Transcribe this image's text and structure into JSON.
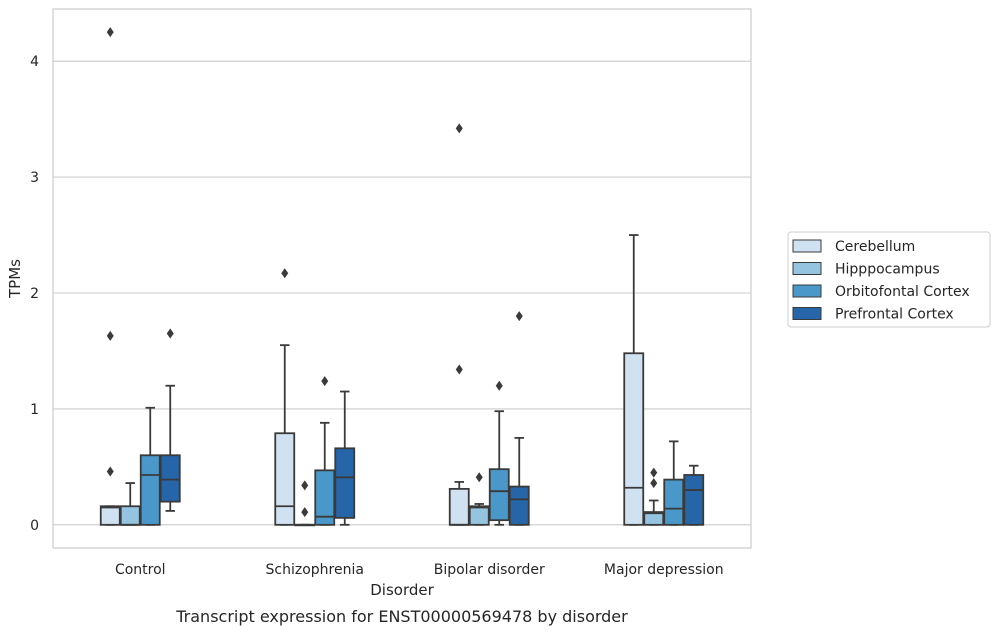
{
  "chart_data": {
    "type": "box",
    "title": "Transcript expression for ENST00000569478 by disorder",
    "xlabel": "Disorder",
    "ylabel": "TPMs",
    "ylim": [
      -0.2,
      4.45
    ],
    "yticks": [
      0,
      1,
      2,
      3,
      4
    ],
    "grid": "horizontal",
    "legend_placement": "right",
    "categories": [
      "Control",
      "Schizophrenia",
      "Bipolar disorder",
      "Major depression"
    ],
    "series": [
      {
        "name": "Cerebellum",
        "color": "#d0e1f2",
        "boxes": [
          {
            "low": 0,
            "q1": 0,
            "median": 0.15,
            "q3": 0.16,
            "high": 0.16,
            "outliers": [
              0.46,
              1.63,
              4.25
            ]
          },
          {
            "low": 0,
            "q1": 0,
            "median": 0.16,
            "q3": 0.79,
            "high": 1.55,
            "outliers": [
              2.17
            ]
          },
          {
            "low": 0,
            "q1": 0,
            "median": 0,
            "q3": 0.31,
            "high": 0.37,
            "outliers": [
              1.34,
              3.42
            ]
          },
          {
            "low": 0,
            "q1": 0,
            "median": 0.32,
            "q3": 1.48,
            "high": 2.5,
            "outliers": []
          }
        ]
      },
      {
        "name": "Hipppocampus",
        "color": "#94c4df",
        "boxes": [
          {
            "low": 0,
            "q1": 0,
            "median": 0,
            "q3": 0.16,
            "high": 0.36,
            "outliers": []
          },
          {
            "low": 0,
            "q1": 0,
            "median": 0,
            "q3": 0,
            "high": 0,
            "outliers": [
              0.11,
              0.34
            ]
          },
          {
            "low": 0,
            "q1": 0,
            "median": 0.15,
            "q3": 0.16,
            "high": 0.18,
            "outliers": [
              0.41
            ]
          },
          {
            "low": 0,
            "q1": 0,
            "median": 0.1,
            "q3": 0.11,
            "high": 0.21,
            "outliers": [
              0.36,
              0.45
            ]
          }
        ]
      },
      {
        "name": "Orbitofontal Cortex",
        "color": "#4a98c9",
        "boxes": [
          {
            "low": 0,
            "q1": 0,
            "median": 0.43,
            "q3": 0.6,
            "high": 1.01,
            "outliers": []
          },
          {
            "low": 0,
            "q1": 0,
            "median": 0.07,
            "q3": 0.47,
            "high": 0.88,
            "outliers": [
              1.24
            ]
          },
          {
            "low": 0,
            "q1": 0.04,
            "median": 0.29,
            "q3": 0.48,
            "high": 0.98,
            "outliers": [
              1.2
            ]
          },
          {
            "low": 0,
            "q1": 0,
            "median": 0.14,
            "q3": 0.39,
            "high": 0.72,
            "outliers": []
          }
        ]
      },
      {
        "name": "Prefrontal Cortex",
        "color": "#2565a8",
        "boxes": [
          {
            "low": 0.12,
            "q1": 0.2,
            "median": 0.39,
            "q3": 0.6,
            "high": 1.2,
            "outliers": [
              1.65
            ]
          },
          {
            "low": 0,
            "q1": 0.06,
            "median": 0.41,
            "q3": 0.66,
            "high": 1.15,
            "outliers": []
          },
          {
            "low": 0,
            "q1": 0,
            "median": 0.22,
            "q3": 0.33,
            "high": 0.75,
            "outliers": [
              1.8
            ]
          },
          {
            "low": 0,
            "q1": 0,
            "median": 0.3,
            "q3": 0.43,
            "high": 0.51,
            "outliers": []
          }
        ]
      }
    ]
  }
}
